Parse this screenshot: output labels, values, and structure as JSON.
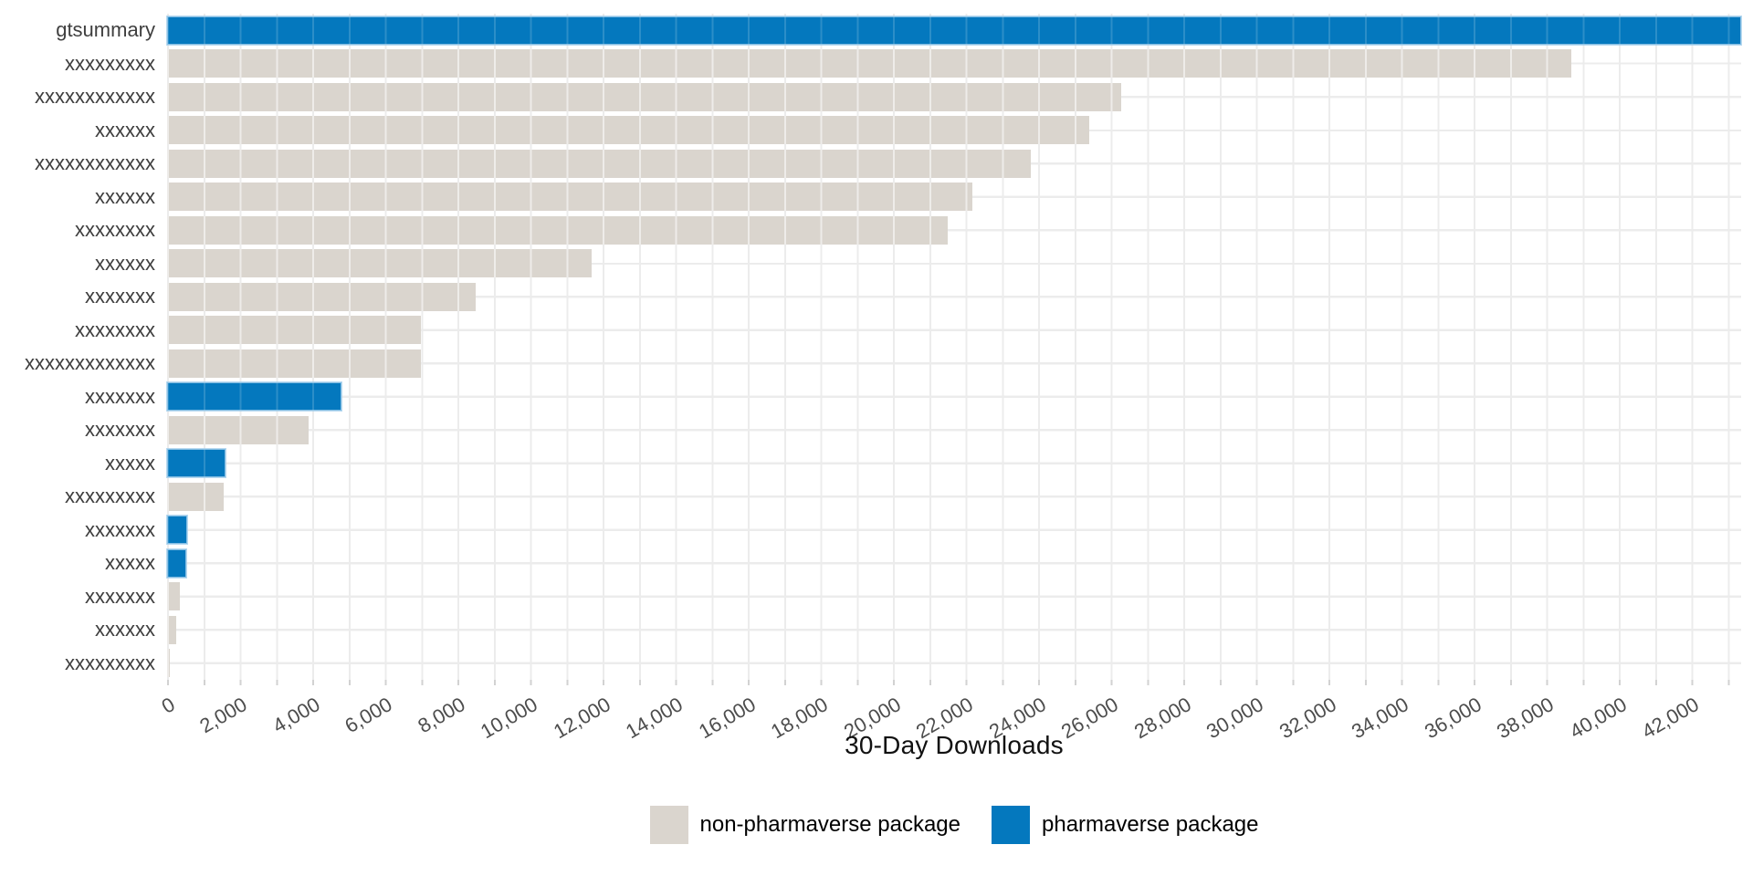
{
  "chart_data": {
    "type": "bar",
    "orientation": "horizontal",
    "title": "",
    "xlabel": "30-Day Downloads",
    "ylabel": "",
    "xlim": [
      0,
      43370
    ],
    "x_tick_step": 2000,
    "x_tick_labels": [
      "0",
      "2,000",
      "4,000",
      "6,000",
      "8,000",
      "10,000",
      "12,000",
      "14,000",
      "16,000",
      "18,000",
      "20,000",
      "22,000",
      "24,000",
      "26,000",
      "28,000",
      "30,000",
      "32,000",
      "34,000",
      "36,000",
      "38,000",
      "40,000",
      "42,000"
    ],
    "grid": "light gray mesh: vertical line every 1,000; horizontal line at each category center",
    "legend_position": "bottom-center",
    "bars": [
      {
        "label": "gtsummary",
        "value": 43400,
        "group": "pharmaverse",
        "clipped_at_panel_edge": true
      },
      {
        "label": "xxxxxxxxx",
        "value": 38700,
        "group": "non-pharmaverse"
      },
      {
        "label": "xxxxxxxxxxxx",
        "value": 26300,
        "group": "non-pharmaverse"
      },
      {
        "label": "xxxxxx",
        "value": 25400,
        "group": "non-pharmaverse"
      },
      {
        "label": "xxxxxxxxxxxx",
        "value": 23800,
        "group": "non-pharmaverse"
      },
      {
        "label": "xxxxxx",
        "value": 22200,
        "group": "non-pharmaverse"
      },
      {
        "label": "xxxxxxxx",
        "value": 21500,
        "group": "non-pharmaverse"
      },
      {
        "label": "xxxxxx",
        "value": 11700,
        "group": "non-pharmaverse"
      },
      {
        "label": "xxxxxxx",
        "value": 8500,
        "group": "non-pharmaverse"
      },
      {
        "label": "xxxxxxxx",
        "value": 7000,
        "group": "non-pharmaverse"
      },
      {
        "label": "xxxxxxxxxxxxx",
        "value": 7000,
        "group": "non-pharmaverse"
      },
      {
        "label": "xxxxxxx",
        "value": 4800,
        "group": "pharmaverse"
      },
      {
        "label": "xxxxxxx",
        "value": 3900,
        "group": "non-pharmaverse"
      },
      {
        "label": "xxxxx",
        "value": 1600,
        "group": "pharmaverse"
      },
      {
        "label": "xxxxxxxxx",
        "value": 1550,
        "group": "non-pharmaverse"
      },
      {
        "label": "xxxxxxx",
        "value": 550,
        "group": "pharmaverse"
      },
      {
        "label": "xxxxx",
        "value": 530,
        "group": "pharmaverse"
      },
      {
        "label": "xxxxxxx",
        "value": 350,
        "group": "non-pharmaverse"
      },
      {
        "label": "xxxxxx",
        "value": 250,
        "group": "non-pharmaverse"
      },
      {
        "label": "xxxxxxxxx",
        "value": 80,
        "group": "non-pharmaverse"
      }
    ],
    "legend": [
      {
        "label": "non-pharmaverse package",
        "group": "non-pharmaverse"
      },
      {
        "label": "pharmaverse package",
        "group": "pharmaverse"
      }
    ],
    "colors": {
      "pharmaverse": "#0478BE",
      "non_pharmaverse": "#DAD5CE",
      "gridline": "#ECECEC",
      "tick_text": "#4D4D4D",
      "category_text": "#3F3F3F",
      "axis_title_text": "#111111"
    }
  }
}
